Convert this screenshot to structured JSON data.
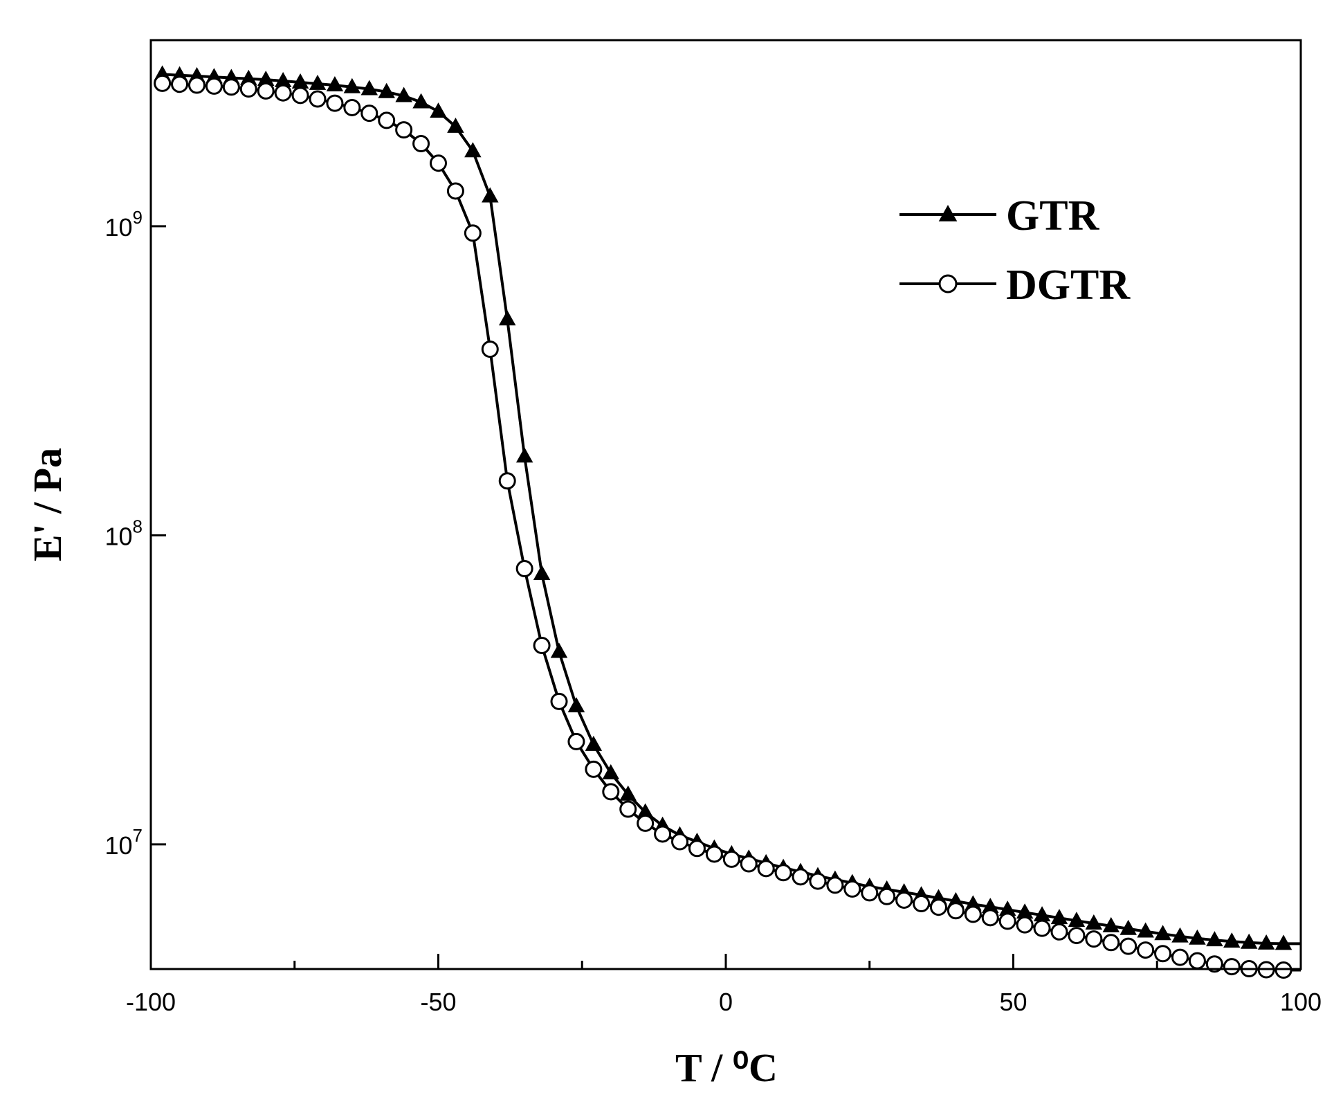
{
  "chart_data": {
    "type": "line",
    "xlabel": "T / ⁰C",
    "ylabel": "E' / Pa",
    "xlim": [
      -100,
      100
    ],
    "ylim": [
      3950000.0,
      4000000000.0
    ],
    "yscale": "log",
    "x_ticks": [
      -100,
      -50,
      0,
      50,
      100
    ],
    "x_tick_labels": [
      "-100",
      "-50",
      "0",
      "50",
      "100"
    ],
    "y_ticks": [
      10000000.0,
      100000000.0,
      1000000000.0
    ],
    "y_tick_labels": [
      {
        "base": "10",
        "exp": "7"
      },
      {
        "base": "10",
        "exp": "8"
      },
      {
        "base": "10",
        "exp": "9"
      }
    ],
    "grid": false,
    "legend_position": "top-right",
    "series": [
      {
        "name": "GTR",
        "marker": "filled-triangle",
        "color": "#000000",
        "x": [
          -98,
          -95,
          -92,
          -89,
          -86,
          -83,
          -80,
          -77,
          -74,
          -71,
          -68,
          -65,
          -62,
          -59,
          -56,
          -53,
          -50,
          -47,
          -44,
          -41,
          -38,
          -35,
          -32,
          -29,
          -26,
          -23,
          -20,
          -17,
          -14,
          -11,
          -8,
          -5,
          -2,
          1,
          4,
          7,
          10,
          13,
          16,
          19,
          22,
          25,
          28,
          31,
          34,
          37,
          40,
          43,
          46,
          49,
          52,
          55,
          58,
          61,
          64,
          67,
          70,
          73,
          76,
          79,
          82,
          85,
          88,
          91,
          94,
          97
        ],
        "y": [
          3100000000.0,
          3080000000.0,
          3060000000.0,
          3040000000.0,
          3020000000.0,
          3000000000.0,
          2980000000.0,
          2950000000.0,
          2920000000.0,
          2890000000.0,
          2860000000.0,
          2820000000.0,
          2780000000.0,
          2720000000.0,
          2640000000.0,
          2520000000.0,
          2350000000.0,
          2100000000.0,
          1750000000.0,
          1250000000.0,
          500000000.0,
          180000000.0,
          75000000.0,
          42000000.0,
          28000000.0,
          21000000.0,
          17000000.0,
          14500000.0,
          12700000.0,
          11500000.0,
          10700000.0,
          10200000.0,
          9700000.0,
          9300000.0,
          9000000.0,
          8700000.0,
          8400000.0,
          8150000.0,
          7900000.0,
          7700000.0,
          7500000.0,
          7300000.0,
          7150000.0,
          7000000.0,
          6850000.0,
          6700000.0,
          6550000.0,
          6400000.0,
          6280000.0,
          6150000.0,
          6020000.0,
          5900000.0,
          5780000.0,
          5660000.0,
          5550000.0,
          5440000.0,
          5330000.0,
          5230000.0,
          5130000.0,
          5040000.0,
          4960000.0,
          4900000.0,
          4850000.0,
          4810000.0,
          4780000.0,
          4770000.0
        ]
      },
      {
        "name": "DGTR",
        "marker": "open-circle",
        "color": "#000000",
        "x": [
          -98,
          -95,
          -92,
          -89,
          -86,
          -83,
          -80,
          -77,
          -74,
          -71,
          -68,
          -65,
          -62,
          -59,
          -56,
          -53,
          -50,
          -47,
          -44,
          -41,
          -38,
          -35,
          -32,
          -29,
          -26,
          -23,
          -20,
          -17,
          -14,
          -11,
          -8,
          -5,
          -2,
          1,
          4,
          7,
          10,
          13,
          16,
          19,
          22,
          25,
          28,
          31,
          34,
          37,
          40,
          43,
          46,
          49,
          52,
          55,
          58,
          61,
          64,
          67,
          70,
          73,
          76,
          79,
          82,
          85,
          88,
          91,
          94,
          97
        ],
        "y": [
          2900000000.0,
          2880000000.0,
          2860000000.0,
          2840000000.0,
          2820000000.0,
          2780000000.0,
          2740000000.0,
          2700000000.0,
          2650000000.0,
          2580000000.0,
          2500000000.0,
          2420000000.0,
          2320000000.0,
          2200000000.0,
          2050000000.0,
          1850000000.0,
          1600000000.0,
          1300000000.0,
          950000000.0,
          400000000.0,
          150000000.0,
          78000000.0,
          44000000.0,
          29000000.0,
          21500000.0,
          17500000.0,
          14800000.0,
          13000000.0,
          11700000.0,
          10800000.0,
          10200000.0,
          9700000.0,
          9300000.0,
          8950000.0,
          8650000.0,
          8350000.0,
          8100000.0,
          7850000.0,
          7600000.0,
          7380000.0,
          7170000.0,
          6970000.0,
          6780000.0,
          6600000.0,
          6430000.0,
          6260000.0,
          6100000.0,
          5940000.0,
          5790000.0,
          5640000.0,
          5490000.0,
          5350000.0,
          5210000.0,
          5070000.0,
          4940000.0,
          4810000.0,
          4680000.0,
          4550000.0,
          4430000.0,
          4310000.0,
          4200000.0,
          4100000.0,
          4020000.0,
          3960000.0,
          3930000.0,
          3920000.0
        ]
      }
    ]
  }
}
